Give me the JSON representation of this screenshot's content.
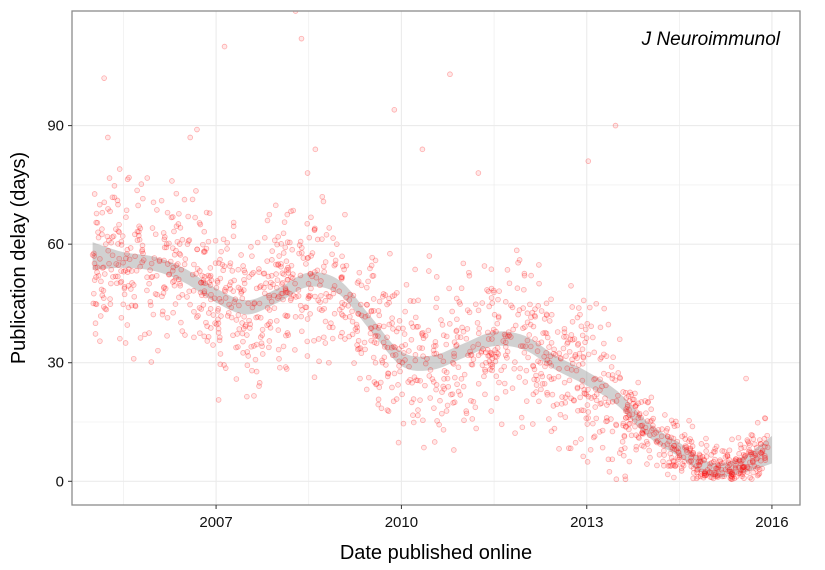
{
  "chart_data": {
    "type": "scatter",
    "annotation": "J Neuroimmunol",
    "xlabel": "Date published online",
    "ylabel": "Publication delay (days)",
    "xlim": [
      "2004-09-01",
      "2016-06-15"
    ],
    "ylim": [
      -6,
      119
    ],
    "x_ticks": [
      {
        "value": "2007-01-01",
        "label": "2007"
      },
      {
        "value": "2010-01-01",
        "label": "2010"
      },
      {
        "value": "2013-01-01",
        "label": "2013"
      },
      {
        "value": "2016-01-01",
        "label": "2016"
      }
    ],
    "y_ticks": [
      {
        "value": 0,
        "label": "0"
      },
      {
        "value": 30,
        "label": "30"
      },
      {
        "value": 60,
        "label": "60"
      },
      {
        "value": 90,
        "label": "90"
      }
    ],
    "grid": true,
    "colors": {
      "points": "#ff0000",
      "smooth_band": "#999999",
      "panel_border": "#8c8c8c",
      "grid": "#ebebeb"
    },
    "smooth": {
      "x": [
        "2005-01-01",
        "2005-07-01",
        "2006-01-01",
        "2006-07-01",
        "2007-01-01",
        "2007-07-01",
        "2008-01-01",
        "2008-07-01",
        "2009-01-01",
        "2009-07-01",
        "2010-01-01",
        "2010-07-01",
        "2011-01-01",
        "2011-07-01",
        "2012-01-01",
        "2012-07-01",
        "2013-01-01",
        "2013-07-01",
        "2014-01-01",
        "2014-07-01",
        "2015-01-01",
        "2015-07-01",
        "2016-01-01"
      ],
      "y": [
        57,
        56,
        55,
        52,
        47,
        44,
        47,
        51,
        49,
        40,
        31,
        30,
        33,
        36,
        35,
        30,
        26,
        21,
        13,
        8,
        3,
        4,
        8
      ],
      "se": [
        3.5,
        2,
        1.8,
        1.8,
        1.8,
        1.8,
        1.8,
        1.8,
        1.8,
        1.8,
        1.8,
        1.8,
        1.8,
        1.8,
        1.8,
        1.8,
        1.8,
        1.8,
        1.8,
        1.8,
        1.8,
        2,
        3.5
      ]
    },
    "points": {
      "x": [
        "2005-01-05",
        "2005-01-10",
        "2005-01-18",
        "2005-02-05",
        "2005-02-12",
        "2005-03-10",
        "2005-04-01",
        "2005-05-05",
        "2005-05-20",
        "2005-06-10",
        "2005-07-15",
        "2005-09-01",
        "2005-10-10",
        "2005-12-01",
        "2006-01-15",
        "2006-02-20",
        "2006-03-15",
        "2006-04-15",
        "2006-05-20",
        "2006-06-15",
        "2006-08-01",
        "2006-09-10",
        "2006-10-20",
        "2006-12-01",
        "2007-01-15",
        "2007-02-20",
        "2007-04-01",
        "2007-05-10",
        "2007-06-15",
        "2007-08-01",
        "2007-09-15",
        "2007-11-01",
        "2007-12-10",
        "2008-01-20",
        "2008-03-01",
        "2008-04-15",
        "2008-05-20",
        "2008-07-01",
        "2008-08-10",
        "2008-09-20",
        "2008-11-01",
        "2008-12-15",
        "2009-02-01",
        "2009-03-15",
        "2009-05-01",
        "2009-06-10",
        "2009-07-20",
        "2009-09-01",
        "2009-10-10",
        "2009-11-20",
        "2010-01-05",
        "2010-02-15",
        "2010-03-25",
        "2010-05-05",
        "2010-06-15",
        "2010-07-25",
        "2010-09-05",
        "2010-10-15",
        "2010-11-25",
        "2011-01-10",
        "2011-02-20",
        "2011-04-01",
        "2011-05-10",
        "2011-06-20",
        "2011-08-01",
        "2011-09-10",
        "2011-10-20",
        "2011-12-01",
        "2012-01-10",
        "2012-02-20",
        "2012-04-01",
        "2012-05-10",
        "2012-06-20",
        "2012-08-01",
        "2012-09-10",
        "2012-10-20",
        "2012-12-01",
        "2013-01-10",
        "2013-02-20",
        "2013-04-01",
        "2013-05-10",
        "2013-06-20",
        "2013-08-01",
        "2013-09-10",
        "2013-10-20",
        "2013-12-01",
        "2014-01-10",
        "2014-02-20",
        "2014-04-01",
        "2014-05-10",
        "2014-06-20",
        "2014-08-01",
        "2014-09-10",
        "2014-10-20",
        "2014-12-01",
        "2015-01-10",
        "2015-02-20",
        "2015-04-01",
        "2015-05-10",
        "2015-06-20",
        "2015-08-01",
        "2015-09-10",
        "2015-10-20",
        "2015-11-20",
        "2005-03-01",
        "2005-03-20",
        "2006-07-01",
        "2006-07-20",
        "2007-06-01",
        "2008-06-15",
        "2008-06-25",
        "2008-07-10",
        "2009-08-01",
        "2010-03-01",
        "2011-06-01",
        "2012-11-01",
        "2013-03-01",
        "2014-03-01",
        "2015-03-01",
        "2005-08-01",
        "2006-02-01",
        "2006-06-01",
        "2006-11-01",
        "2007-03-01",
        "2007-10-01",
        "2008-02-01",
        "2008-10-01",
        "2009-01-15",
        "2009-04-15",
        "2010-06-01",
        "2010-11-01",
        "2011-03-01",
        "2011-09-01",
        "2012-03-01",
        "2012-07-01",
        "2013-06-01",
        "2013-11-01",
        "2014-06-01",
        "2014-11-01",
        "2015-06-01",
        "2015-11-01"
      ],
      "y": [
        45,
        57,
        40,
        52,
        70,
        102,
        87,
        62,
        55,
        79,
        35,
        31,
        64,
        50,
        52,
        43,
        60,
        76,
        55,
        38,
        87,
        89,
        58,
        46,
        40,
        110,
        44,
        34,
        51,
        28,
        45,
        66,
        47,
        55,
        51,
        119,
        112,
        50,
        84,
        72,
        39,
        60,
        36,
        43,
        26,
        49,
        52,
        25,
        18,
        94,
        22,
        29,
        32,
        84,
        57,
        44,
        24,
        103,
        41,
        27,
        32,
        78,
        22,
        36,
        25,
        34,
        44,
        56,
        28,
        22,
        30,
        42,
        26,
        31,
        22,
        36,
        18,
        81,
        26,
        24,
        20,
        90,
        10,
        5,
        8,
        12,
        6,
        4,
        9,
        7,
        10,
        5,
        6,
        3,
        2,
        1,
        4,
        3,
        1,
        2,
        26,
        5,
        3,
        16,
        54,
        60,
        37,
        67,
        48,
        55,
        78,
        47,
        30,
        40,
        36,
        28,
        22,
        13,
        5,
        44,
        56,
        50,
        47,
        49,
        37,
        46,
        53,
        44,
        38,
        31,
        30,
        34,
        29,
        36,
        32,
        26,
        25,
        9,
        6,
        4,
        7
      ]
    }
  }
}
